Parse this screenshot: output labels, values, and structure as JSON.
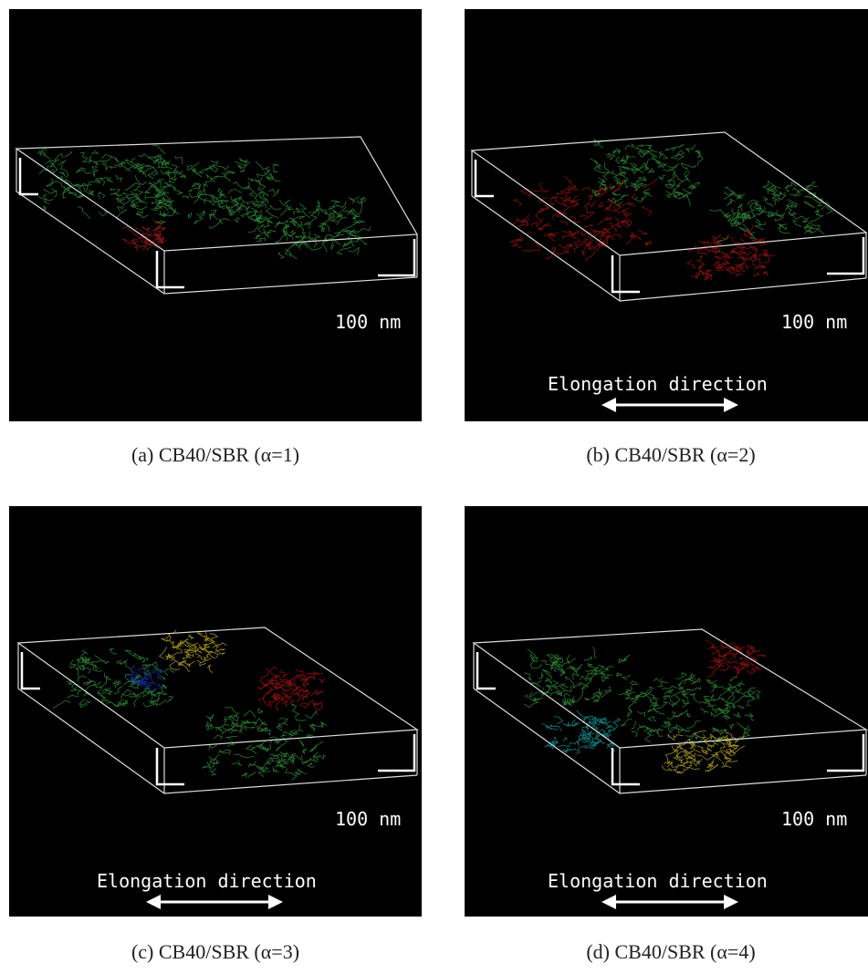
{
  "panels": [
    {
      "scale": "100 nm",
      "caption": "(a) CB40/SBR (α=1)"
    },
    {
      "scale": "100 nm",
      "elongation": "Elongation direction",
      "caption": "(b) CB40/SBR (α=2)"
    },
    {
      "scale": "100 nm",
      "elongation": "Elongation direction",
      "caption": "(c) CB40/SBR (α=3)"
    },
    {
      "scale": "100 nm",
      "elongation": "Elongation direction",
      "caption": "(d) CB40/SBR (α=4)"
    }
  ]
}
